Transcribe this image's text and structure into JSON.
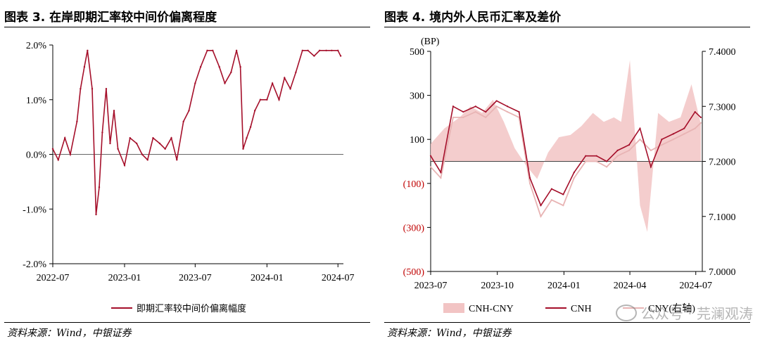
{
  "left": {
    "title": "图表 3. 在岸即期汇率较中间价偏离程度",
    "source": "资料来源：Wind，中银证券",
    "chart_data": {
      "type": "line",
      "title": "",
      "xlabel": "",
      "ylabel": "",
      "x_ticks": [
        "2022-07",
        "2023-01",
        "2023-07",
        "2024-01",
        "2024-07"
      ],
      "y_ticks": [
        "-2.0%",
        "-1.0%",
        "0.0%",
        "1.0%",
        "2.0%"
      ],
      "ylim": [
        -2.0,
        2.0
      ],
      "xlim": [
        "2022-07-01",
        "2024-07-15"
      ],
      "legend_position": "bottom",
      "series": [
        {
          "name": "即期汇率较中间价偏离幅度",
          "color": "#a50f2a",
          "x": [
            "2022-07-01",
            "2022-07-15",
            "2022-08-01",
            "2022-08-15",
            "2022-09-01",
            "2022-09-10",
            "2022-09-20",
            "2022-09-28",
            "2022-10-10",
            "2022-10-20",
            "2022-10-28",
            "2022-11-05",
            "2022-11-15",
            "2022-11-25",
            "2022-12-05",
            "2022-12-15",
            "2023-01-01",
            "2023-01-15",
            "2023-02-01",
            "2023-02-15",
            "2023-03-01",
            "2023-03-15",
            "2023-04-01",
            "2023-04-15",
            "2023-05-01",
            "2023-05-15",
            "2023-06-01",
            "2023-06-15",
            "2023-07-01",
            "2023-07-15",
            "2023-08-01",
            "2023-08-15",
            "2023-09-01",
            "2023-09-15",
            "2023-10-01",
            "2023-10-15",
            "2023-10-25",
            "2023-11-01",
            "2023-11-10",
            "2023-11-20",
            "2023-12-01",
            "2023-12-15",
            "2024-01-01",
            "2024-01-15",
            "2024-02-01",
            "2024-02-15",
            "2024-03-01",
            "2024-03-15",
            "2024-04-01",
            "2024-04-15",
            "2024-05-01",
            "2024-05-15",
            "2024-06-01",
            "2024-06-15",
            "2024-07-01",
            "2024-07-08"
          ],
          "y": [
            0.1,
            -0.1,
            0.3,
            0.0,
            0.6,
            1.2,
            1.6,
            1.9,
            1.2,
            -1.1,
            -0.6,
            0.4,
            1.2,
            0.2,
            0.8,
            0.1,
            -0.2,
            0.3,
            0.2,
            0.0,
            -0.1,
            0.3,
            0.2,
            0.1,
            0.3,
            -0.1,
            0.6,
            0.8,
            1.3,
            1.6,
            1.9,
            1.9,
            1.6,
            1.3,
            1.5,
            1.9,
            1.6,
            0.1,
            0.3,
            0.5,
            0.8,
            1.0,
            1.0,
            1.3,
            1.0,
            1.4,
            1.2,
            1.5,
            1.9,
            1.9,
            1.8,
            1.9,
            1.9,
            1.9,
            1.9,
            1.8
          ]
        }
      ]
    }
  },
  "right": {
    "title": "图表 4. 境内外人民币汇率及差价",
    "source": "资料来源：Wind，中银证券",
    "watermark": "公众号 · 芫澜观涛",
    "chart_data": {
      "type": "line",
      "title": "",
      "xlabel": "",
      "ylabel": "(BP)",
      "x_ticks": [
        "2023-07",
        "2023-10",
        "2024-01",
        "2024-04",
        "2024-07"
      ],
      "y_ticks_left": [
        "(500)",
        "(300)",
        "(100)",
        "100",
        "300",
        "500"
      ],
      "y_ticks_right": [
        "7.0000",
        "7.1000",
        "7.2000",
        "7.3000",
        "7.4000"
      ],
      "ylim_left": [
        -500,
        500
      ],
      "ylim_right": [
        7.0,
        7.4
      ],
      "xlim": [
        "2023-07-01",
        "2024-07-10"
      ],
      "legend_position": "bottom",
      "series": [
        {
          "name": "CNH-CNY",
          "type": "area",
          "axis": "left",
          "color": "#f2c4c4",
          "x": [
            "2023-07-01",
            "2023-07-20",
            "2023-08-10",
            "2023-08-25",
            "2023-09-10",
            "2023-09-25",
            "2023-10-10",
            "2023-10-25",
            "2023-11-10",
            "2023-11-25",
            "2023-12-10",
            "2023-12-25",
            "2024-01-10",
            "2024-01-25",
            "2024-02-10",
            "2024-02-25",
            "2024-03-10",
            "2024-03-20",
            "2024-04-01",
            "2024-04-15",
            "2024-04-25",
            "2024-05-10",
            "2024-05-25",
            "2024-06-10",
            "2024-06-25",
            "2024-07-08"
          ],
          "y": [
            80,
            150,
            200,
            250,
            220,
            280,
            180,
            60,
            -20,
            -80,
            40,
            110,
            120,
            160,
            220,
            180,
            200,
            180,
            460,
            -200,
            -320,
            220,
            180,
            200,
            350,
            170
          ]
        },
        {
          "name": "CNH",
          "type": "line",
          "axis": "right",
          "color": "#a50f2a",
          "x": [
            "2023-07-01",
            "2023-07-15",
            "2023-08-01",
            "2023-08-15",
            "2023-09-01",
            "2023-09-15",
            "2023-09-30",
            "2023-10-15",
            "2023-10-31",
            "2023-11-15",
            "2023-11-30",
            "2023-12-15",
            "2023-12-31",
            "2024-01-15",
            "2024-01-31",
            "2024-02-15",
            "2024-02-29",
            "2024-03-15",
            "2024-03-31",
            "2024-04-15",
            "2024-04-30",
            "2024-05-15",
            "2024-05-31",
            "2024-06-15",
            "2024-06-30",
            "2024-07-08"
          ],
          "y": [
            7.21,
            7.18,
            7.3,
            7.29,
            7.3,
            7.29,
            7.31,
            7.3,
            7.29,
            7.17,
            7.12,
            7.15,
            7.14,
            7.18,
            7.21,
            7.21,
            7.2,
            7.22,
            7.23,
            7.26,
            7.19,
            7.24,
            7.25,
            7.26,
            7.29,
            7.28
          ]
        },
        {
          "name": "CNY(右轴)",
          "type": "line",
          "axis": "right",
          "color": "#e8b4b4",
          "x": [
            "2023-07-01",
            "2023-07-15",
            "2023-08-01",
            "2023-08-15",
            "2023-09-01",
            "2023-09-15",
            "2023-09-30",
            "2023-10-15",
            "2023-10-31",
            "2023-11-15",
            "2023-11-30",
            "2023-12-15",
            "2023-12-31",
            "2024-01-15",
            "2024-01-31",
            "2024-02-15",
            "2024-02-29",
            "2024-03-15",
            "2024-03-31",
            "2024-04-15",
            "2024-04-30",
            "2024-05-15",
            "2024-05-31",
            "2024-06-15",
            "2024-06-30",
            "2024-07-08"
          ],
          "y": [
            7.19,
            7.17,
            7.28,
            7.28,
            7.29,
            7.28,
            7.3,
            7.29,
            7.28,
            7.16,
            7.1,
            7.13,
            7.12,
            7.17,
            7.2,
            7.2,
            7.19,
            7.21,
            7.22,
            7.24,
            7.22,
            7.23,
            7.24,
            7.25,
            7.26,
            7.27
          ]
        }
      ]
    }
  }
}
